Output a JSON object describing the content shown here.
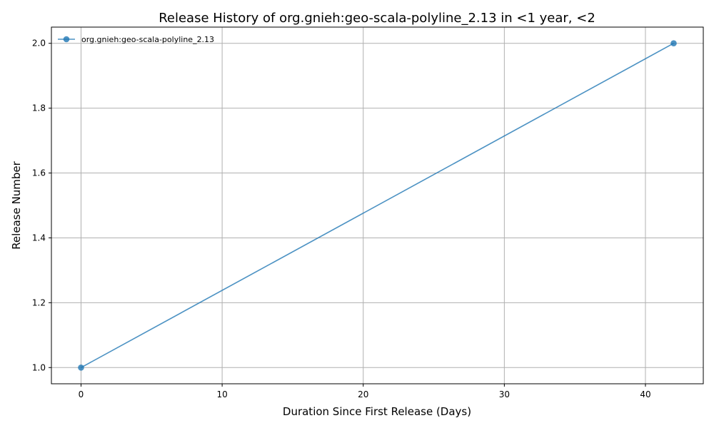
{
  "chart_data": {
    "type": "line",
    "title": "Release History of org.gnieh:geo-scala-polyline_2.13 in <1 year, <2",
    "xlabel": "Duration Since First Release (Days)",
    "ylabel": "Release Number",
    "xlim": [
      -2.1,
      44.1
    ],
    "ylim": [
      0.95,
      2.05
    ],
    "x_ticks": [
      0,
      10,
      20,
      30,
      40
    ],
    "y_ticks": [
      1.0,
      1.2,
      1.4,
      1.6,
      1.8,
      2.0
    ],
    "grid": true,
    "legend_position": "top-left",
    "series": [
      {
        "name": "org.gnieh:geo-scala-polyline_2.13",
        "color": "#1f77b4",
        "marker": "circle",
        "x": [
          0,
          42
        ],
        "y": [
          1,
          2
        ]
      }
    ]
  }
}
